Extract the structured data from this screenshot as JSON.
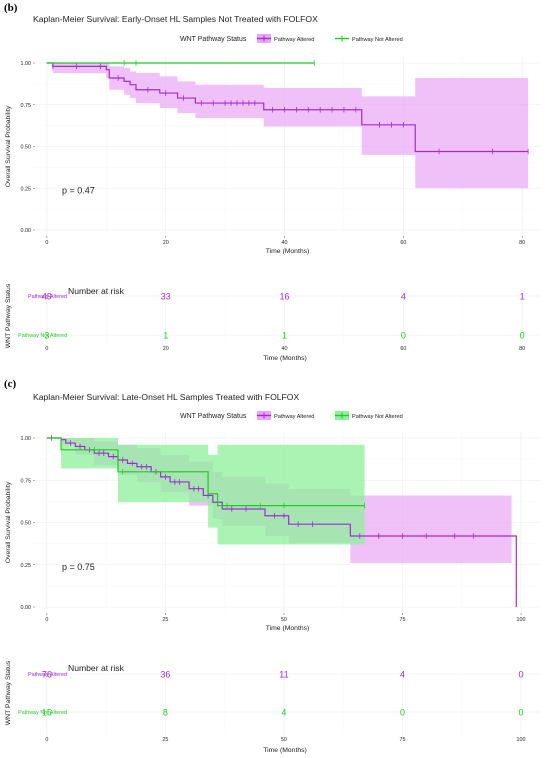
{
  "colors": {
    "altered": "#a32ad8",
    "not_altered": "#1fcc1f",
    "altered_fill": "#e9a6f7",
    "not_altered_fill": "#8ef09a"
  },
  "chart_data": [
    {
      "type": "line",
      "panel_label": "(b)",
      "title": "Kaplan-Meier Survival: Early-Onset HL Samples Not Treated with FOLFOX",
      "legend_title": "WNT Pathway Status",
      "legend_position": "top",
      "xlabel": "Time (Months)",
      "ylabel": "Overall Survival Probability",
      "xlim": [
        -2,
        83
      ],
      "ylim": [
        0,
        1.0
      ],
      "xticks": [
        0,
        20,
        40,
        60,
        80
      ],
      "yticks": [
        0.0,
        0.25,
        0.5,
        0.75,
        1.0
      ],
      "ytick_labels": [
        "0.00",
        "0.25",
        "0.50",
        "0.75",
        "1.00"
      ],
      "grid": true,
      "pvalue": "p = 0.47",
      "series": [
        {
          "name": "Pathway Altered",
          "color": "#a32ad8",
          "steps": [
            [
              0,
              1.0
            ],
            [
              1,
              0.98
            ],
            [
              10,
              0.96
            ],
            [
              10.5,
              0.91
            ],
            [
              13,
              0.89
            ],
            [
              14,
              0.87
            ],
            [
              15,
              0.84
            ],
            [
              19,
              0.82
            ],
            [
              22,
              0.79
            ],
            [
              25,
              0.76
            ],
            [
              36.5,
              0.72
            ],
            [
              53,
              0.63
            ],
            [
              62,
              0.47
            ],
            [
              81,
              0.47
            ]
          ],
          "ci_steps": [
            [
              0,
              1.0,
              1.0
            ],
            [
              1,
              1.0,
              0.94
            ],
            [
              10,
              1.0,
              0.91
            ],
            [
              10.5,
              0.98,
              0.84
            ],
            [
              13,
              0.97,
              0.81
            ],
            [
              14,
              0.95,
              0.79
            ],
            [
              15,
              0.94,
              0.76
            ],
            [
              19,
              0.92,
              0.73
            ],
            [
              22,
              0.89,
              0.7
            ],
            [
              25,
              0.87,
              0.67
            ],
            [
              36.5,
              0.85,
              0.62
            ],
            [
              53,
              0.8,
              0.45
            ],
            [
              62,
              0.91,
              0.25
            ],
            [
              81,
              0.91,
              0.25
            ]
          ],
          "censors": [
            [
              1,
              0.98
            ],
            [
              5,
              0.98
            ],
            [
              9,
              0.98
            ],
            [
              12,
              0.91
            ],
            [
              17,
              0.84
            ],
            [
              20,
              0.82
            ],
            [
              23,
              0.79
            ],
            [
              26,
              0.76
            ],
            [
              28,
              0.76
            ],
            [
              30,
              0.76
            ],
            [
              31,
              0.76
            ],
            [
              32,
              0.76
            ],
            [
              33,
              0.76
            ],
            [
              34,
              0.76
            ],
            [
              35,
              0.76
            ],
            [
              38,
              0.72
            ],
            [
              40,
              0.72
            ],
            [
              42,
              0.72
            ],
            [
              44,
              0.72
            ],
            [
              46,
              0.72
            ],
            [
              48,
              0.72
            ],
            [
              50,
              0.72
            ],
            [
              52,
              0.72
            ],
            [
              56,
              0.63
            ],
            [
              58,
              0.63
            ],
            [
              60,
              0.63
            ],
            [
              66,
              0.47
            ],
            [
              75,
              0.47
            ],
            [
              81,
              0.47
            ]
          ]
        },
        {
          "name": "Pathway Not Altered",
          "color": "#1fcc1f",
          "steps": [
            [
              0,
              1.0
            ],
            [
              45,
              1.0
            ]
          ],
          "censors": [
            [
              13,
              1.0
            ],
            [
              15,
              1.0
            ],
            [
              45,
              1.0
            ]
          ]
        }
      ],
      "risk_table": {
        "title": "Number at risk",
        "ylabel": "WNT Pathway Status",
        "xlabel": "Time (Months)",
        "times": [
          0,
          20,
          40,
          60,
          80
        ],
        "rows": [
          {
            "name": "Pathway Altered",
            "color": "#a32ad8",
            "counts": [
              "49",
              "33",
              "16",
              "4",
              "1"
            ]
          },
          {
            "name": "Pathway Not Altered",
            "color": "#1fcc1f",
            "counts": [
              "3",
              "1",
              "1",
              "0",
              "0"
            ]
          }
        ]
      }
    },
    {
      "type": "line",
      "panel_label": "(c)",
      "title": "Kaplan-Meier Survival: Late-Onset HL Samples Treated with FOLFOX",
      "legend_title": "WNT Pathway Status",
      "legend_position": "top",
      "xlabel": "Time (Months)",
      "ylabel": "Overall Survival Probability",
      "xlim": [
        -2.5,
        104
      ],
      "ylim": [
        0,
        1.0
      ],
      "xticks": [
        0,
        25,
        50,
        75,
        100
      ],
      "yticks": [
        0.0,
        0.25,
        0.5,
        0.75,
        1.0
      ],
      "ytick_labels": [
        "0.00",
        "0.25",
        "0.50",
        "0.75",
        "1.00"
      ],
      "grid": true,
      "pvalue": "p = 0.75",
      "series": [
        {
          "name": "Pathway Altered",
          "color": "#a32ad8",
          "steps": [
            [
              0,
              1.0
            ],
            [
              3,
              0.99
            ],
            [
              4,
              0.97
            ],
            [
              6,
              0.95
            ],
            [
              8,
              0.93
            ],
            [
              10,
              0.91
            ],
            [
              13,
              0.89
            ],
            [
              15,
              0.87
            ],
            [
              17,
              0.85
            ],
            [
              19,
              0.83
            ],
            [
              22,
              0.8
            ],
            [
              24,
              0.77
            ],
            [
              26,
              0.74
            ],
            [
              30,
              0.7
            ],
            [
              33,
              0.66
            ],
            [
              35,
              0.62
            ],
            [
              37,
              0.58
            ],
            [
              46,
              0.54
            ],
            [
              51,
              0.49
            ],
            [
              64,
              0.42
            ],
            [
              99,
              0.42
            ],
            [
              99,
              0.0
            ]
          ],
          "ci_steps": [
            [
              0,
              1.0,
              1.0
            ],
            [
              3,
              1.0,
              0.96
            ],
            [
              6,
              1.0,
              0.9
            ],
            [
              10,
              0.98,
              0.84
            ],
            [
              15,
              0.96,
              0.78
            ],
            [
              19,
              0.94,
              0.74
            ],
            [
              24,
              0.9,
              0.68
            ],
            [
              30,
              0.86,
              0.6
            ],
            [
              35,
              0.8,
              0.52
            ],
            [
              37,
              0.77,
              0.48
            ],
            [
              46,
              0.73,
              0.42
            ],
            [
              51,
              0.7,
              0.38
            ],
            [
              64,
              0.66,
              0.26
            ],
            [
              98,
              0.66,
              0.26
            ]
          ],
          "censors": [
            [
              1,
              1.0
            ],
            [
              5,
              0.97
            ],
            [
              7,
              0.95
            ],
            [
              9,
              0.93
            ],
            [
              11,
              0.91
            ],
            [
              12,
              0.91
            ],
            [
              14,
              0.89
            ],
            [
              16,
              0.87
            ],
            [
              18,
              0.85
            ],
            [
              20,
              0.83
            ],
            [
              21,
              0.83
            ],
            [
              23,
              0.8
            ],
            [
              25,
              0.77
            ],
            [
              27,
              0.74
            ],
            [
              28,
              0.74
            ],
            [
              31,
              0.7
            ],
            [
              32,
              0.7
            ],
            [
              34,
              0.66
            ],
            [
              36,
              0.62
            ],
            [
              39,
              0.58
            ],
            [
              42,
              0.58
            ],
            [
              48,
              0.54
            ],
            [
              50,
              0.54
            ],
            [
              53,
              0.49
            ],
            [
              56,
              0.49
            ],
            [
              66,
              0.42
            ],
            [
              70,
              0.42
            ],
            [
              75,
              0.42
            ],
            [
              80,
              0.42
            ],
            [
              86,
              0.42
            ],
            [
              90,
              0.42
            ]
          ]
        },
        {
          "name": "Pathway Not Altered",
          "color": "#1fcc1f",
          "steps": [
            [
              0,
              1.0
            ],
            [
              3,
              0.93
            ],
            [
              15,
              0.8
            ],
            [
              34,
              0.67
            ],
            [
              36,
              0.6
            ],
            [
              67,
              0.6
            ]
          ],
          "ci_steps": [
            [
              0,
              1.0,
              1.0
            ],
            [
              3,
              1.0,
              0.82
            ],
            [
              15,
              0.96,
              0.62
            ],
            [
              34,
              0.9,
              0.47
            ],
            [
              36,
              0.96,
              0.37
            ],
            [
              67,
              0.96,
              0.37
            ]
          ],
          "censors": [
            [
              10,
              0.93
            ],
            [
              16,
              0.8
            ],
            [
              38,
              0.6
            ],
            [
              45,
              0.6
            ],
            [
              50,
              0.6
            ],
            [
              67,
              0.6
            ]
          ]
        }
      ],
      "risk_table": {
        "title": "Number at risk",
        "ylabel": "WNT Pathway Status",
        "xlabel": "Time (Months)",
        "times": [
          0,
          25,
          50,
          75,
          100
        ],
        "rows": [
          {
            "name": "Pathway Altered",
            "color": "#a32ad8",
            "counts": [
              "76",
              "36",
              "11",
              "4",
              "0"
            ]
          },
          {
            "name": "Pathway Not Altered",
            "color": "#1fcc1f",
            "counts": [
              "15",
              "8",
              "4",
              "0",
              "0"
            ]
          }
        ]
      }
    }
  ]
}
